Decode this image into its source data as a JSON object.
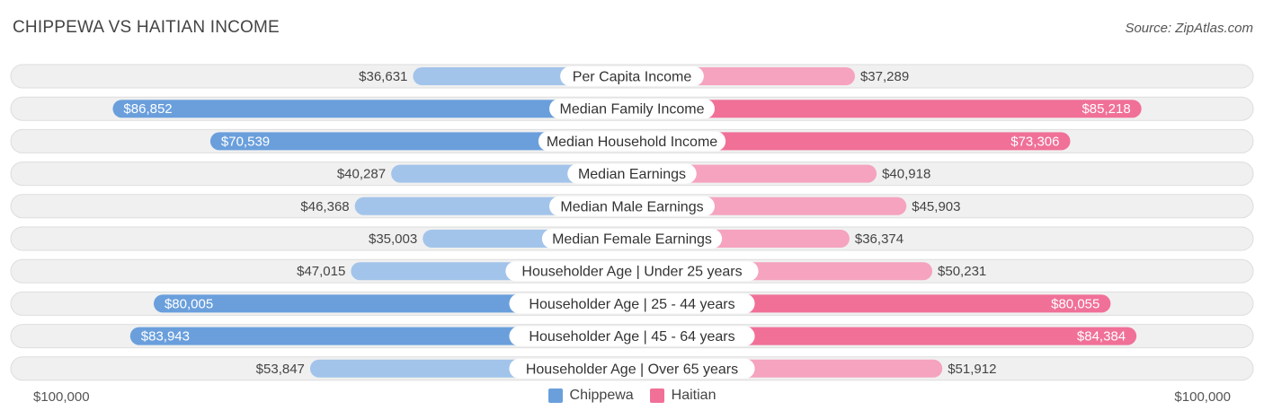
{
  "header": {
    "title": "CHIPPEWA VS HAITIAN INCOME",
    "source": "Source: ZipAtlas.com"
  },
  "colors": {
    "chippewa_strong": "#6a9fdc",
    "chippewa_light": "#a3c4ea",
    "haitian_strong": "#f07098",
    "haitian_light": "#f5a3bf",
    "row_bg": "#f0f0f0",
    "row_border": "#dddddd"
  },
  "chart_data": {
    "type": "bar",
    "orientation": "horizontal-diverging",
    "title": "CHIPPEWA VS HAITIAN INCOME",
    "categories": [
      "Per Capita Income",
      "Median Family Income",
      "Median Household Income",
      "Median Earnings",
      "Median Male Earnings",
      "Median Female Earnings",
      "Householder Age | Under 25 years",
      "Householder Age | 25 - 44 years",
      "Householder Age | 45 - 64 years",
      "Householder Age | Over 65 years"
    ],
    "series": [
      {
        "name": "Chippewa",
        "side": "left",
        "values": [
          36631,
          86852,
          70539,
          40287,
          46368,
          35003,
          47015,
          80005,
          83943,
          53847
        ],
        "labels": [
          "$36,631",
          "$86,852",
          "$70,539",
          "$40,287",
          "$46,368",
          "$35,003",
          "$47,015",
          "$80,005",
          "$83,943",
          "$53,847"
        ]
      },
      {
        "name": "Haitian",
        "side": "right",
        "values": [
          37289,
          85218,
          73306,
          40918,
          45903,
          36374,
          50231,
          80055,
          84384,
          51912
        ],
        "labels": [
          "$37,289",
          "$85,218",
          "$73,306",
          "$40,918",
          "$45,903",
          "$36,374",
          "$50,231",
          "$80,055",
          "$84,384",
          "$51,912"
        ]
      }
    ],
    "xlim": [
      0,
      100000
    ],
    "axis_labels": {
      "left": "$100,000",
      "right": "$100,000"
    },
    "strong_threshold": 60000,
    "legend": [
      "Chippewa",
      "Haitian"
    ],
    "legend_position": "bottom-center"
  }
}
